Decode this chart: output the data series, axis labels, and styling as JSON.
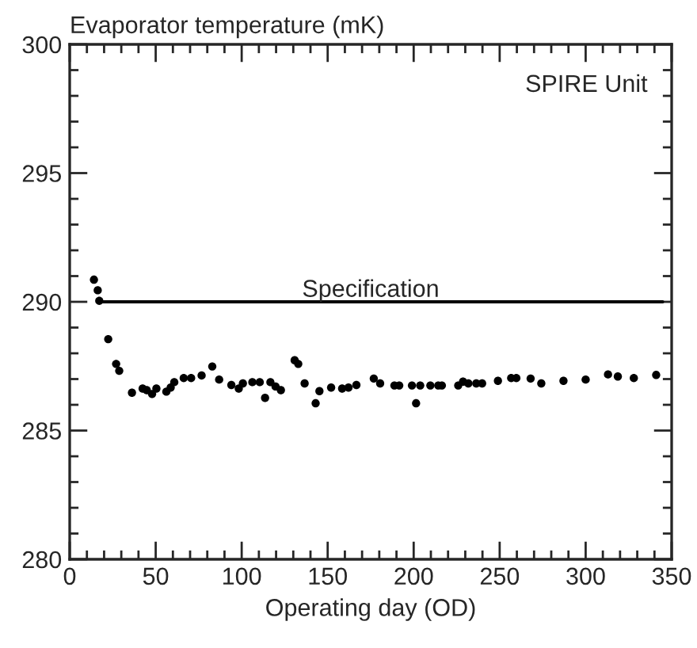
{
  "chart_data": {
    "type": "scatter",
    "xlabel": "Operating day (OD)",
    "ylabel": "Evaporator temperature (mK)",
    "annotations": [
      "SPIRE Unit"
    ],
    "ref_lines": [
      {
        "axis": "y",
        "value": 290,
        "label": "Specification",
        "color": "#000000",
        "line_style": "solid"
      }
    ],
    "xlim": [
      0,
      350
    ],
    "xticks": [
      0,
      50,
      100,
      150,
      200,
      250,
      300,
      350
    ],
    "ylim": [
      280,
      300
    ],
    "yticks": [
      280,
      285,
      290,
      295,
      300
    ],
    "marker": "circle",
    "grid": false,
    "legend": false,
    "series": [
      {
        "color": "#000000",
        "x": [
          14.1,
          16.3,
          17.2,
          22.4,
          27,
          28.8,
          36.2,
          42.4,
          44.8,
          47.9,
          50.4,
          56.2,
          58.7,
          60.8,
          66.3,
          70.6,
          76.7,
          82.9,
          86.9,
          94,
          98.3,
          100.7,
          106.2,
          110.5,
          113.6,
          116.7,
          119.7,
          122.8,
          130.8,
          132.9,
          136.6,
          143,
          145.2,
          152,
          158.4,
          162.1,
          166.7,
          176.8,
          180.5,
          188.8,
          191.6,
          199,
          201.4,
          203.8,
          209.7,
          214.3,
          216.4,
          225.9,
          228.7,
          231.8,
          236.4,
          239.8,
          249,
          256.7,
          259.7,
          268,
          274.2,
          287.1,
          300,
          313,
          318.7,
          328,
          341
        ],
        "values": [
          290.86,
          290.45,
          290.04,
          288.55,
          287.59,
          287.32,
          286.47,
          286.63,
          286.57,
          286.42,
          286.63,
          286.51,
          286.67,
          286.88,
          287.04,
          287.04,
          287.14,
          287.49,
          286.98,
          286.77,
          286.63,
          286.83,
          286.88,
          286.88,
          286.27,
          286.88,
          286.71,
          286.57,
          287.73,
          287.59,
          286.83,
          286.06,
          286.53,
          286.67,
          286.63,
          286.67,
          286.77,
          287.02,
          286.83,
          286.75,
          286.75,
          286.75,
          286.06,
          286.75,
          286.75,
          286.75,
          286.75,
          286.75,
          286.9,
          286.83,
          286.83,
          286.83,
          286.93,
          287.04,
          287.04,
          287.02,
          286.83,
          286.93,
          286.98,
          287.18,
          287.1,
          287.04,
          287.16
        ]
      }
    ]
  }
}
